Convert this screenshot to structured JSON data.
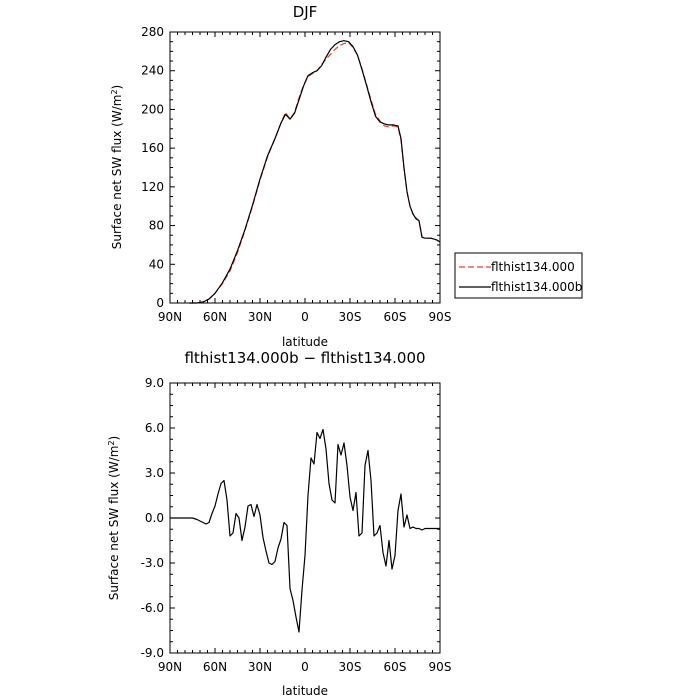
{
  "chart_data": [
    {
      "type": "line",
      "title": "DJF",
      "xlabel": "latitude",
      "ylabel_main": "Surface net SW flux (W/m",
      "ylabel_sup": "2",
      "ylabel_close": ")",
      "xlim": [
        90,
        -90
      ],
      "ylim": [
        0,
        280
      ],
      "xticks": [
        90,
        60,
        30,
        0,
        -30,
        -60,
        -90
      ],
      "xtick_labels": [
        "90N",
        "60N",
        "30N",
        "0",
        "30S",
        "60S",
        "90S"
      ],
      "yticks": [
        0,
        40,
        80,
        120,
        160,
        200,
        240,
        280
      ],
      "ytick_labels": [
        "0",
        "40",
        "80",
        "120",
        "160",
        "200",
        "240",
        "280"
      ],
      "legend": {
        "position": "right",
        "entries": [
          "flthist134.000",
          "flthist134.000b"
        ]
      },
      "series": [
        {
          "name": "flthist134.000",
          "color": "#e8403a",
          "dash": true,
          "x": [
            77,
            72,
            68,
            64,
            60,
            55,
            50,
            45,
            40,
            35,
            30,
            25,
            20,
            16,
            13,
            10,
            7,
            4,
            1,
            -2,
            -5,
            -8,
            -11,
            -14,
            -17,
            -20,
            -23,
            -26,
            -29,
            -32,
            -35,
            -38,
            -41,
            -44,
            -47,
            -50,
            -53,
            -56,
            -59,
            -62,
            -64,
            -66,
            -68,
            -70,
            -72,
            -74,
            -76,
            -78,
            -80,
            -84,
            -86,
            -88,
            -90
          ],
          "y": [
            0,
            0,
            1,
            4,
            10,
            20,
            33,
            52,
            75,
            100,
            127,
            151,
            170,
            186,
            197,
            190,
            197,
            212,
            225,
            234,
            237,
            240,
            246,
            252,
            257,
            262,
            266,
            268,
            269,
            264,
            256,
            242,
            226,
            210,
            195,
            188,
            183,
            182,
            183,
            182,
            168,
            138,
            115,
            100,
            92,
            88,
            85,
            68,
            67,
            67,
            66,
            65,
            63
          ]
        },
        {
          "name": "flthist134.000b",
          "color": "#000000",
          "dash": false,
          "x": [
            77,
            72,
            68,
            64,
            60,
            55,
            50,
            45,
            40,
            35,
            30,
            25,
            20,
            16,
            13,
            10,
            7,
            4,
            1,
            -2,
            -5,
            -8,
            -11,
            -14,
            -17,
            -20,
            -23,
            -26,
            -29,
            -32,
            -35,
            -38,
            -41,
            -44,
            -47,
            -50,
            -53,
            -56,
            -59,
            -62,
            -64,
            -66,
            -68,
            -70,
            -72,
            -74,
            -76,
            -78,
            -80,
            -84,
            -86,
            -88,
            -90
          ],
          "y": [
            0,
            0,
            1,
            4,
            10,
            21,
            35,
            54,
            76,
            101,
            128,
            152,
            170,
            186,
            195,
            190,
            196,
            210,
            224,
            235,
            238,
            240,
            245,
            254,
            262,
            267,
            270,
            271,
            270,
            265,
            256,
            241,
            225,
            208,
            193,
            187,
            185,
            184,
            184,
            183,
            170,
            140,
            115,
            100,
            92,
            87,
            85,
            68,
            67,
            67,
            66,
            65,
            63
          ]
        }
      ]
    },
    {
      "type": "line",
      "title": "flthist134.000b − flthist134.000",
      "xlabel": "latitude",
      "ylabel_main": "Surface net SW flux (W/m",
      "ylabel_sup": "2",
      "ylabel_close": ")",
      "xlim": [
        90,
        -90
      ],
      "ylim": [
        -9,
        9
      ],
      "xticks": [
        90,
        60,
        30,
        0,
        -30,
        -60,
        -90
      ],
      "xtick_labels": [
        "90N",
        "60N",
        "30N",
        "0",
        "30S",
        "60S",
        "90S"
      ],
      "yticks": [
        -9,
        -6,
        -3,
        0,
        3,
        6,
        9
      ],
      "ytick_labels": [
        "-9.0",
        "-6.0",
        "-3.0",
        "0.0",
        "3.0",
        "6.0",
        "9.0"
      ],
      "series": [
        {
          "name": "flthist134.000b − flthist134.000",
          "color": "#000000",
          "dash": false,
          "x": [
            90,
            85,
            80,
            75,
            72,
            70,
            68,
            66,
            64,
            62,
            60,
            58,
            56,
            54,
            52,
            50,
            48,
            46,
            44,
            42,
            40,
            38,
            36,
            34,
            32,
            30,
            28,
            26,
            24,
            22,
            20,
            18,
            16,
            14,
            12,
            10,
            8,
            6,
            4,
            2,
            0,
            -2,
            -4,
            -6,
            -8,
            -10,
            -12,
            -14,
            -16,
            -18,
            -20,
            -22,
            -24,
            -26,
            -28,
            -30,
            -32,
            -34,
            -36,
            -38,
            -40,
            -42,
            -44,
            -46,
            -48,
            -50,
            -52,
            -54,
            -56,
            -58,
            -60,
            -62,
            -64,
            -66,
            -68,
            -70,
            -72,
            -74,
            -76,
            -78,
            -80,
            -82,
            -84,
            -86,
            -88,
            -90
          ],
          "y": [
            0,
            0,
            0,
            0,
            -0.1,
            -0.2,
            -0.3,
            -0.4,
            -0.3,
            0.3,
            0.8,
            1.6,
            2.3,
            2.5,
            1.2,
            -1.2,
            -1.0,
            0.3,
            0.0,
            -1.5,
            -0.6,
            0.8,
            0.9,
            0.1,
            0.9,
            0.2,
            -1.3,
            -2.2,
            -3.0,
            -3.1,
            -2.9,
            -2.0,
            -1.4,
            -0.3,
            -0.5,
            -4.7,
            -5.5,
            -6.6,
            -7.6,
            -4.8,
            -2.5,
            1.5,
            4.0,
            3.6,
            5.7,
            5.3,
            5.9,
            4.6,
            2.3,
            1.2,
            1.0,
            4.9,
            4.2,
            5.0,
            3.5,
            1.4,
            0.5,
            1.7,
            -1.2,
            -1.0,
            3.5,
            4.5,
            2.5,
            -1.2,
            -1.0,
            -0.5,
            -2.3,
            -3.2,
            -1.5,
            -3.4,
            -2.5,
            0.5,
            1.6,
            -0.6,
            0.2,
            -0.7,
            -0.6,
            -0.7,
            -0.7,
            -0.8,
            -0.7,
            -0.7,
            -0.7,
            -0.7,
            -0.7,
            -0.7
          ]
        }
      ]
    }
  ]
}
